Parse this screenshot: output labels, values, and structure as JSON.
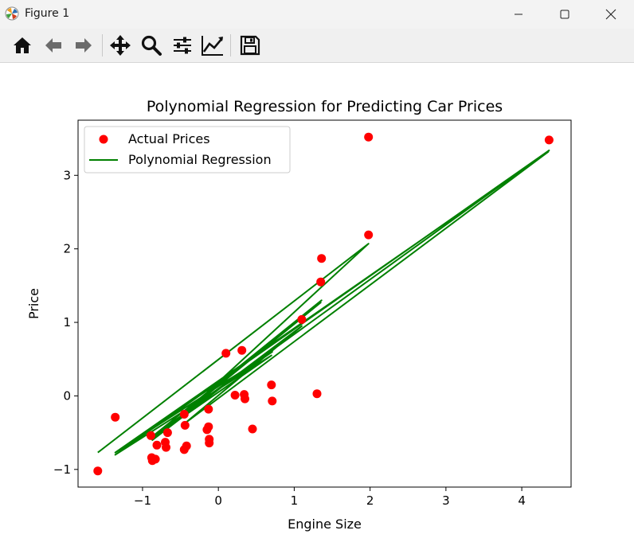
{
  "window": {
    "title": "Figure 1",
    "controls": [
      "minimize",
      "maximize",
      "close"
    ]
  },
  "toolbar": {
    "tools": [
      {
        "name": "home-icon"
      },
      {
        "name": "back-arrow-icon"
      },
      {
        "name": "forward-arrow-icon"
      },
      {
        "name": "pan-move-icon"
      },
      {
        "name": "zoom-magnifier-icon"
      },
      {
        "name": "configure-subplots-icon"
      },
      {
        "name": "edit-axis-icon"
      },
      {
        "name": "save-floppy-icon"
      }
    ]
  },
  "colors": {
    "points": "#ff0000",
    "line": "#008000"
  },
  "chart_data": {
    "type": "scatter",
    "title": "Polynomial Regression for Predicting Car Prices",
    "xlabel": "Engine Size",
    "ylabel": "Price",
    "xlim": [
      -1.85,
      4.65
    ],
    "ylim": [
      -1.24,
      3.75
    ],
    "xticks": [
      -1,
      0,
      1,
      2,
      3,
      4
    ],
    "yticks": [
      -1,
      0,
      1,
      2,
      3
    ],
    "xtick_labels": [
      "−1",
      "0",
      "1",
      "2",
      "3",
      "4"
    ],
    "ytick_labels": [
      "−1",
      "0",
      "1",
      "2",
      "3"
    ],
    "legend": {
      "placement": "upper-left",
      "entries": [
        "Actual Prices",
        "Polynomial Regression"
      ]
    },
    "series": [
      {
        "name": "Actual Prices",
        "type": "scatter",
        "points": [
          [
            -1.59,
            -1.02
          ],
          [
            -1.36,
            -0.29
          ],
          [
            -0.89,
            -0.54
          ],
          [
            -0.88,
            -0.84
          ],
          [
            -0.87,
            -0.88
          ],
          [
            -0.83,
            -0.86
          ],
          [
            -0.81,
            -0.67
          ],
          [
            -0.7,
            -0.63
          ],
          [
            -0.69,
            -0.7
          ],
          [
            -0.67,
            -0.5
          ],
          [
            -0.45,
            -0.73
          ],
          [
            -0.45,
            -0.25
          ],
          [
            -0.44,
            -0.4
          ],
          [
            -0.42,
            -0.68
          ],
          [
            -0.15,
            -0.46
          ],
          [
            -0.13,
            -0.42
          ],
          [
            -0.13,
            -0.18
          ],
          [
            -0.12,
            -0.59
          ],
          [
            -0.12,
            -0.64
          ],
          [
            0.1,
            0.58
          ],
          [
            0.22,
            0.01
          ],
          [
            0.31,
            0.62
          ],
          [
            0.34,
            0.02
          ],
          [
            0.35,
            -0.04
          ],
          [
            0.45,
            -0.45
          ],
          [
            0.7,
            0.15
          ],
          [
            0.71,
            -0.07
          ],
          [
            1.1,
            1.04
          ],
          [
            1.3,
            0.03
          ],
          [
            1.35,
            1.55
          ],
          [
            1.36,
            1.87
          ],
          [
            1.98,
            3.52
          ],
          [
            1.98,
            2.19
          ],
          [
            4.36,
            3.48
          ]
        ]
      },
      {
        "name": "Polynomial Regression",
        "type": "line",
        "points": [
          [
            -1.59,
            -0.77
          ],
          [
            1.98,
            2.07
          ],
          [
            -0.45,
            -0.24
          ],
          [
            1.36,
            1.3
          ],
          [
            -0.88,
            -0.56
          ],
          [
            4.36,
            3.34
          ],
          [
            -1.36,
            -0.8
          ],
          [
            0.7,
            0.55
          ],
          [
            -0.7,
            -0.45
          ],
          [
            1.35,
            1.27
          ],
          [
            -0.13,
            0.05
          ],
          [
            0.35,
            0.36
          ],
          [
            -0.83,
            -0.55
          ],
          [
            1.1,
            0.95
          ],
          [
            -0.45,
            -0.38
          ],
          [
            4.35,
            3.32
          ],
          [
            -1.36,
            -0.77
          ],
          [
            0.71,
            0.6
          ],
          [
            -0.12,
            0.01
          ],
          [
            0.31,
            0.33
          ],
          [
            -0.87,
            -0.6
          ],
          [
            0.22,
            0.26
          ],
          [
            0.1,
            0.17
          ]
        ]
      }
    ]
  }
}
